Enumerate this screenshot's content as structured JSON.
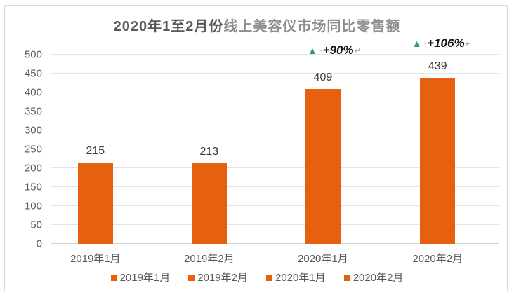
{
  "chart_data": {
    "type": "bar",
    "title": {
      "part1": "2020年1至2月份",
      "part2": "线上美容仪市场同比零售额"
    },
    "categories": [
      "2019年1月",
      "2019年2月",
      "2020年1月",
      "2020年2月"
    ],
    "values": [
      215,
      213,
      409,
      439
    ],
    "value_labels": [
      "215",
      "213",
      "409",
      "439"
    ],
    "xlabel": "",
    "ylabel": "",
    "ylim": [
      0,
      500
    ],
    "ytick_step": 50,
    "ytick_labels": [
      "0",
      "50",
      "100",
      "150",
      "200",
      "250",
      "300",
      "350",
      "400",
      "450",
      "500"
    ],
    "grid": "horizontal",
    "legend_position": "bottom",
    "legend": [
      "2019年1月",
      "2019年2月",
      "2020年1月",
      "2020年2月"
    ],
    "annotations": [
      {
        "category": "2020年1月",
        "triangle": "▲",
        "dash": "-",
        "text": "+90%",
        "mark": "↵"
      },
      {
        "category": "2020年2月",
        "triangle": "▲",
        "dash": "-",
        "text": "+106%",
        "mark": "↵"
      }
    ],
    "colors": {
      "bar": "#e6600e",
      "triangle_green": "#2ba45d",
      "title_primary": "#595959",
      "title_secondary": "#8f8f8f",
      "gridline": "#e3e3e3",
      "frame_border": "#d9d9d9"
    }
  }
}
